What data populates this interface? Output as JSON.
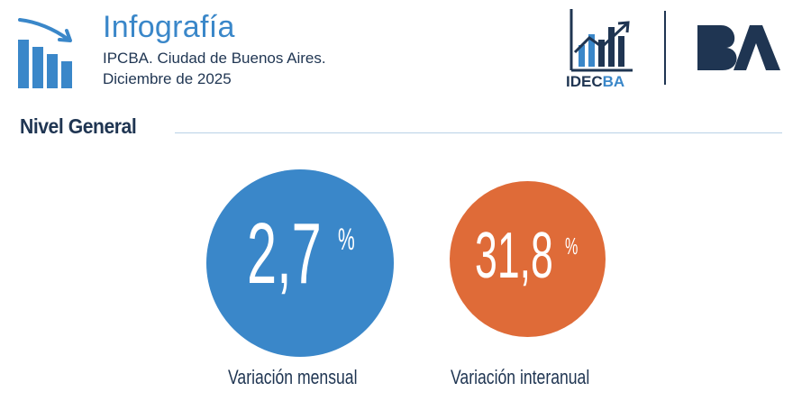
{
  "header": {
    "title": "Infografía",
    "subtitle_line1": "IPCBA. Ciudad de Buenos Aires.",
    "subtitle_line2": "Diciembre de 2025",
    "icon": "bar-chart-trend-down-icon"
  },
  "logos": {
    "idecba": {
      "part1": "IDEC",
      "part2": "BA",
      "icon": "idecba-logo"
    },
    "ba": {
      "icon": "ba-logo"
    }
  },
  "section": {
    "title": "Nivel General"
  },
  "metrics": [
    {
      "value": "2,7",
      "unit": "%",
      "label": "Variación mensual",
      "color": "#3a87c9"
    },
    {
      "value": "31,8",
      "unit": "%",
      "label": "Variación interanual",
      "color": "#df6b38"
    }
  ],
  "colors": {
    "primary_blue": "#3a87c9",
    "navy": "#1f3552",
    "orange": "#df6b38"
  }
}
